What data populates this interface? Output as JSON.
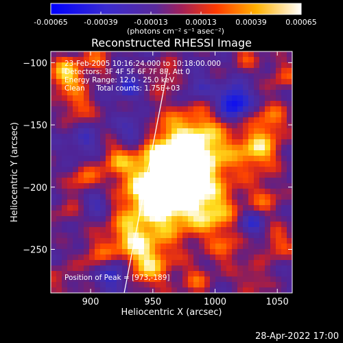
{
  "colorbar": {
    "ticks": [
      "-0.00065",
      "-0.00039",
      "-0.00013",
      "0.00013",
      "0.00039",
      "0.00065"
    ],
    "tick_values": [
      -0.00065,
      -0.00039,
      -0.00013,
      0.00013,
      0.00039,
      0.00065
    ],
    "units": "(photons cm⁻² s⁻¹ asec⁻²)"
  },
  "annotations": {
    "time_range": "23-Feb-2005 10:16:24.000 to 10:18:00.000",
    "detectors": "Detectors: 3F 4F 5F 6F 7F 8F, Att 0",
    "energy_range": "Energy Range: 12.0 - 25.0 keV",
    "method_counts": "Clean     Total counts: 1.75E+03",
    "peak": "Position of Peak = [973,-189]"
  },
  "timestamp": "28-Apr-2022 17:00",
  "chart_data": {
    "type": "heatmap",
    "title": "Reconstructed RHESSI Image",
    "xlabel": "Heliocentric X (arcsec)",
    "ylabel": "Heliocentric Y (arcsec)",
    "xlim": [
      868,
      1062
    ],
    "ylim": [
      -285,
      -91
    ],
    "xticks": [
      900,
      950,
      1000,
      1050
    ],
    "yticks": [
      -250,
      -200,
      -150,
      -100
    ],
    "colormap": "RHESSI red/temperature: blue (negative) - purple - red - orange - yellow - white (positive)",
    "color_range": [
      -0.00065,
      0.00065
    ],
    "peak_position": [
      973,
      -189
    ],
    "limb_line": {
      "x": [
        927,
        962
      ],
      "y": [
        -285,
        -105
      ]
    },
    "features": [
      {
        "label": "main source",
        "x": 970,
        "y": -190
      },
      {
        "label": "bright region",
        "x": 945,
        "y": -260
      },
      {
        "label": "bright region",
        "x": 880,
        "y": -110
      },
      {
        "label": "negative region",
        "x": 1015,
        "y": -132
      },
      {
        "label": "bright region",
        "x": 1035,
        "y": -170
      }
    ],
    "grid": false
  },
  "colors": {
    "background": "#000000",
    "text": "#ffffff",
    "neg_min": "#0000ff",
    "mid": "#4b2390",
    "pos_mid": "#ff4500",
    "pos_max": "#ffffff"
  }
}
